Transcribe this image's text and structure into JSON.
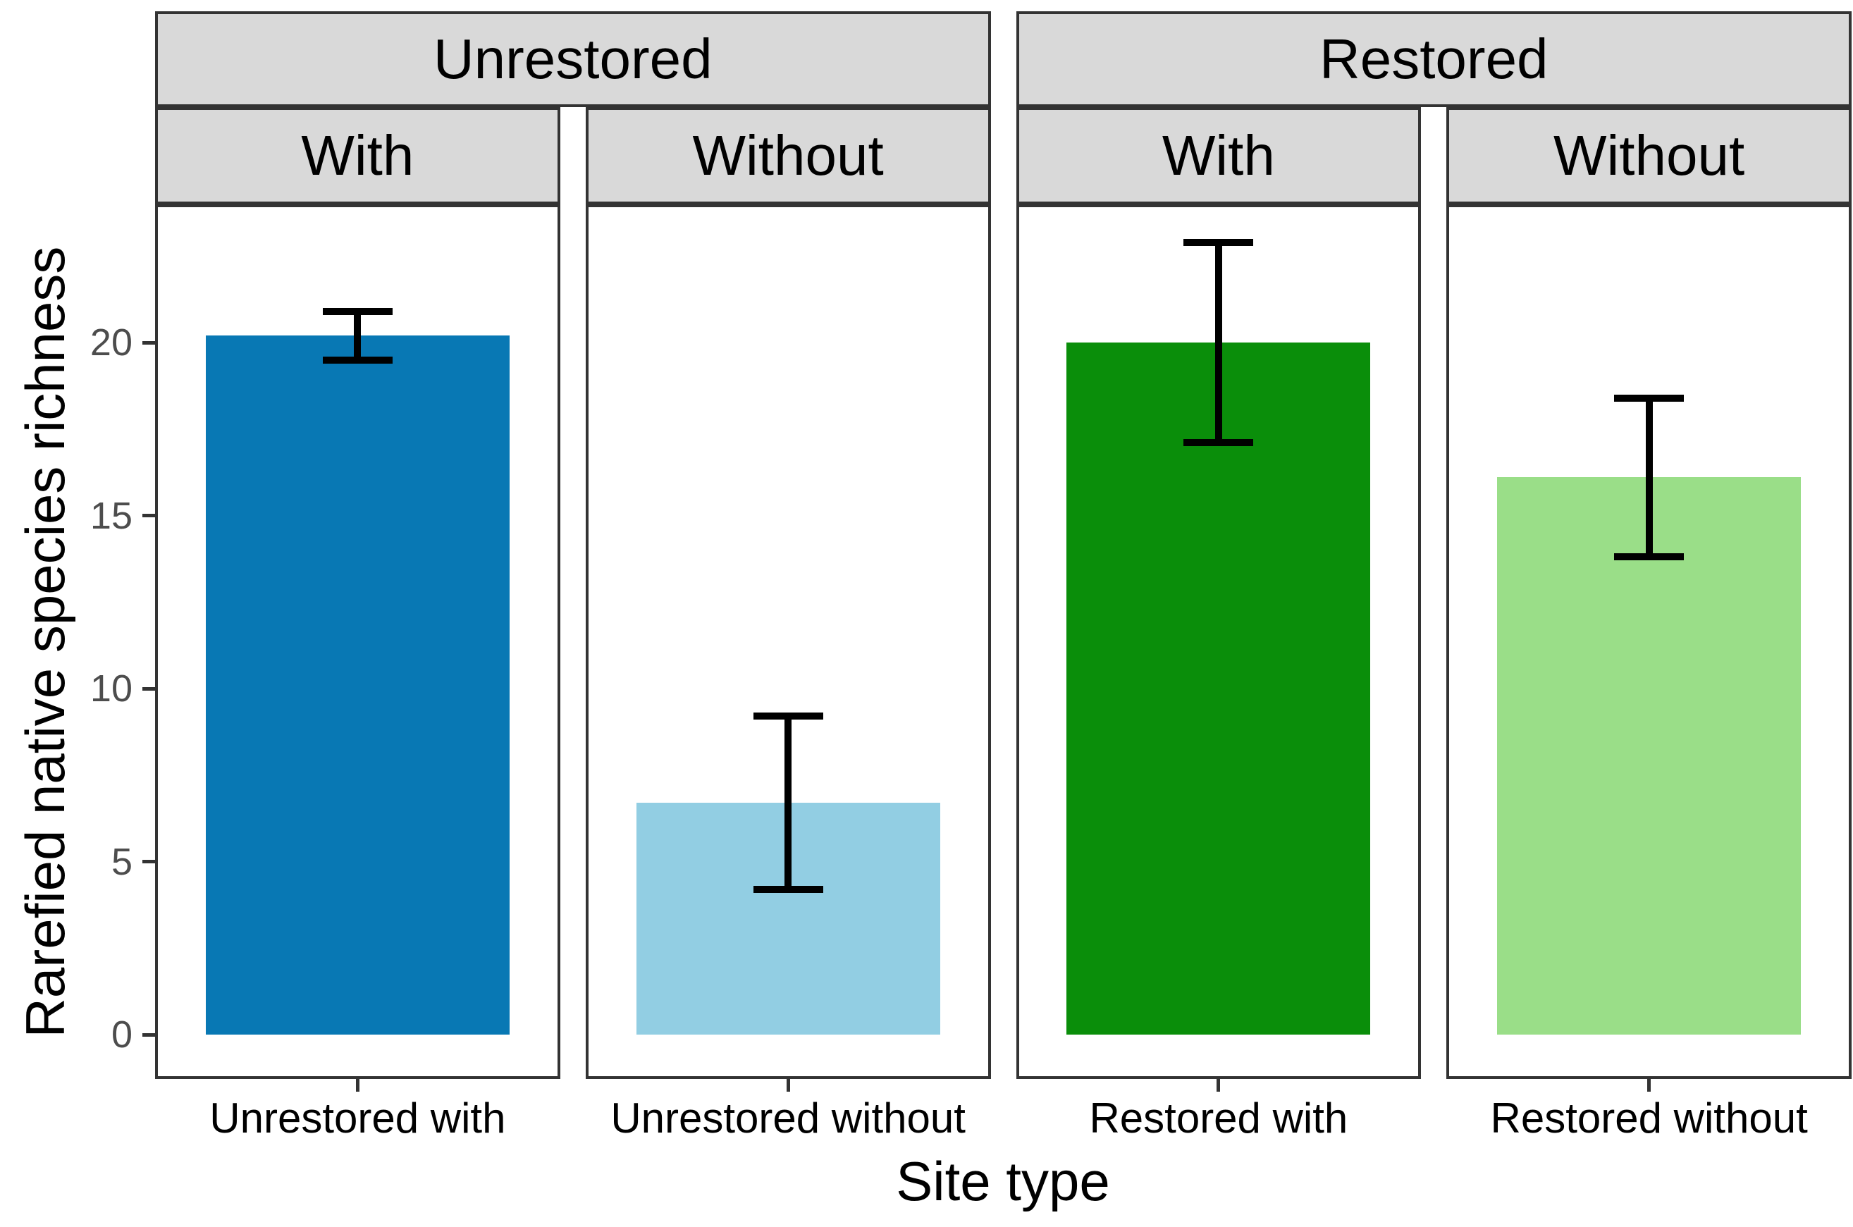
{
  "chart_data": {
    "type": "bar",
    "title": "",
    "xlabel": "Site type",
    "ylabel": "Rarefied native species richness",
    "ylim": [
      -1.2,
      24
    ],
    "yticks": [
      0,
      5,
      10,
      15,
      20
    ],
    "grid": "off",
    "legend": "none",
    "facet_levels": {
      "outer": [
        "Unrestored",
        "Restored"
      ],
      "inner": [
        "With",
        "Without"
      ]
    },
    "outer_groups": [
      {
        "label": "Unrestored",
        "panels": [
          0,
          1
        ]
      },
      {
        "label": "Restored",
        "panels": [
          2,
          3
        ]
      }
    ],
    "series": [
      {
        "outer": "Unrestored",
        "inner": "With",
        "category": "Unrestored with",
        "value": 20.2,
        "err_low": 19.5,
        "err_high": 20.9,
        "fill": "#0878B4"
      },
      {
        "outer": "Unrestored",
        "inner": "Without",
        "category": "Unrestored without",
        "value": 6.7,
        "err_low": 4.2,
        "err_high": 9.2,
        "fill": "#92CEE3"
      },
      {
        "outer": "Restored",
        "inner": "With",
        "category": "Restored with",
        "value": 20.0,
        "err_low": 17.1,
        "err_high": 22.9,
        "fill": "#0A8E0A"
      },
      {
        "outer": "Restored",
        "inner": "Without",
        "category": "Restored without",
        "value": 16.1,
        "err_low": 13.8,
        "err_high": 18.4,
        "fill": "#9ADE88"
      }
    ],
    "style": {
      "strip_fill": "#D9D9D9",
      "border_color": "#333333",
      "errorbar_color": "#000000",
      "ytick_label_color": "#4D4D4D",
      "xtick_label_color": "#000000",
      "background": "#FFFFFF"
    }
  }
}
